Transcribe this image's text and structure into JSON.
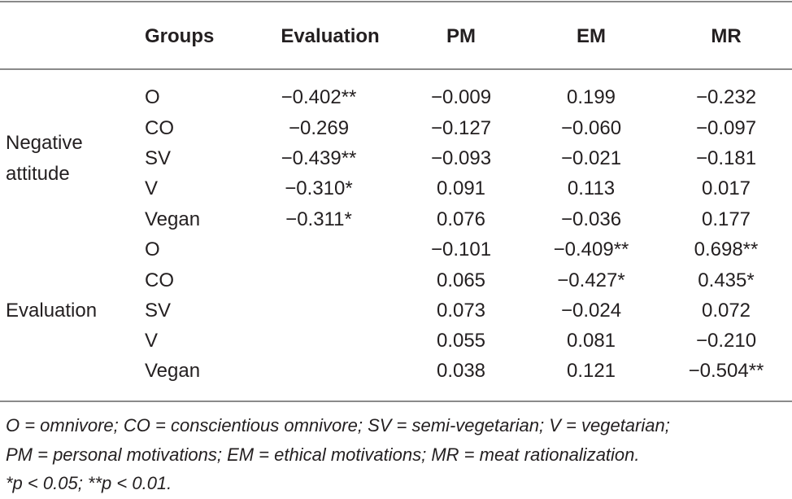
{
  "header": {
    "groups": "Groups",
    "evaluation": "Evaluation",
    "pm": "PM",
    "em": "EM",
    "mr": "MR"
  },
  "sections": [
    {
      "label_line1": "Negative",
      "label_line2": "attitude",
      "rows": [
        {
          "group": "O",
          "evaluation": "−0.402**",
          "pm": "−0.009",
          "em": "0.199",
          "mr": "−0.232"
        },
        {
          "group": "CO",
          "evaluation": "−0.269",
          "pm": "−0.127",
          "em": "−0.060",
          "mr": "−0.097"
        },
        {
          "group": "SV",
          "evaluation": "−0.439**",
          "pm": "−0.093",
          "em": "−0.021",
          "mr": "−0.181"
        },
        {
          "group": "V",
          "evaluation": "−0.310*",
          "pm": "0.091",
          "em": "0.113",
          "mr": "0.017"
        },
        {
          "group": "Vegan",
          "evaluation": "−0.311*",
          "pm": "0.076",
          "em": "−0.036",
          "mr": "0.177"
        }
      ]
    },
    {
      "label_line1": "Evaluation",
      "rows": [
        {
          "group": "O",
          "evaluation": "",
          "pm": "−0.101",
          "em": "−0.409**",
          "mr": "0.698**"
        },
        {
          "group": "CO",
          "evaluation": "",
          "pm": "0.065",
          "em": "−0.427*",
          "mr": "0.435*"
        },
        {
          "group": "SV",
          "evaluation": "",
          "pm": "0.073",
          "em": "−0.024",
          "mr": "0.072"
        },
        {
          "group": "V",
          "evaluation": "",
          "pm": "0.055",
          "em": "0.081",
          "mr": "−0.210"
        },
        {
          "group": "Vegan",
          "evaluation": "",
          "pm": "0.038",
          "em": "0.121",
          "mr": "−0.504**"
        }
      ]
    }
  ],
  "footnotes": {
    "line1": "O = omnivore; CO = conscientious omnivore; SV = semi-vegetarian; V = vegetarian;",
    "line2": "PM = personal motivations; EM = ethical motivations; MR = meat rationalization.",
    "line3": "*p < 0.05; **p < 0.01."
  }
}
